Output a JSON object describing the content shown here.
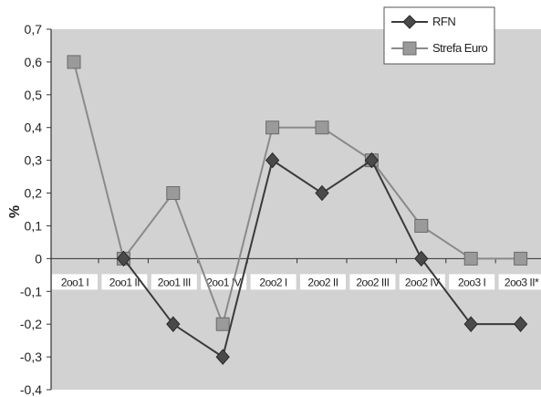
{
  "chart_data": {
    "type": "line",
    "title": "",
    "xlabel": "",
    "ylabel": "%",
    "categories": [
      "2oo1 I",
      "2oo1 II",
      "2oo1 III",
      "2oo1 IV",
      "2oo2 I",
      "2oo2 II",
      "2oo2 III",
      "2oo2 IV",
      "2oo3 I",
      "2oo3 II*"
    ],
    "series": [
      {
        "name": "RFN",
        "values": [
          null,
          0,
          -0.2,
          -0.3,
          0.3,
          0.2,
          0.3,
          0,
          -0.2,
          -0.2
        ],
        "marker": "diamond"
      },
      {
        "name": "Strefa Euro",
        "values": [
          0.6,
          0,
          0.2,
          -0.2,
          0.4,
          0.4,
          0.3,
          0.1,
          0,
          0
        ],
        "marker": "square"
      }
    ],
    "ylim": [
      -0.4,
      0.7
    ],
    "yticks": [
      0.7,
      0.6,
      0.5,
      0.4,
      0.3,
      0.2,
      0.1,
      0,
      -0.1,
      -0.2,
      -0.3,
      -0.4
    ],
    "ytick_labels": [
      "0,7",
      "0,6",
      "0,5",
      "0,4",
      "0,3",
      "0,2",
      "0,1",
      "0",
      "-0,1",
      "-0,2",
      "-0,3",
      "-0,4"
    ],
    "grid": false,
    "legend": "top-right",
    "colors": {
      "plot_bg": "#d2d2d2",
      "rfn": "#3a3a3a",
      "strefa_euro": "#8a8a8a",
      "axis": "#333333"
    }
  }
}
